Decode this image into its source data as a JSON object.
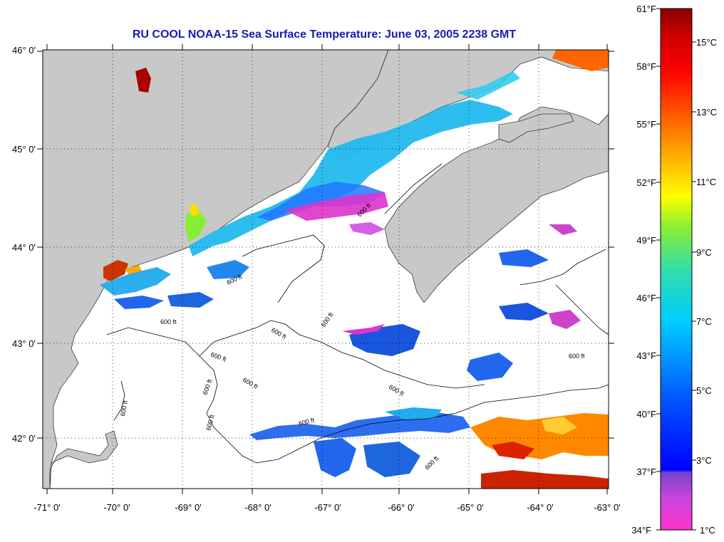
{
  "title": "RU COOL  NOAA-15  Sea Surface Temperature:  June 03, 2005 2238 GMT",
  "longitude_axis": {
    "ticks": [
      "-71° 0'",
      "-70° 0'",
      "-69° 0'",
      "-68° 0'",
      "-67° 0'",
      "-66° 0'",
      "-65° 0'",
      "-64° 0'",
      "-63° 0'"
    ],
    "range": [
      -71,
      -63
    ]
  },
  "latitude_axis": {
    "ticks": [
      "46° 0'",
      "45° 0'",
      "44° 0'",
      "43° 0'",
      "42° 0'"
    ],
    "values": [
      46,
      45,
      44,
      43,
      42
    ],
    "range": [
      41.5,
      46
    ]
  },
  "colorbar": {
    "fahrenheit": [
      {
        "label": "61°F",
        "value": 61
      },
      {
        "label": "58°F",
        "value": 58
      },
      {
        "label": "55°F",
        "value": 55
      },
      {
        "label": "52°F",
        "value": 52
      },
      {
        "label": "49°F",
        "value": 49
      },
      {
        "label": "46°F",
        "value": 46
      },
      {
        "label": "43°F",
        "value": 43
      },
      {
        "label": "40°F",
        "value": 40
      },
      {
        "label": "37°F",
        "value": 37
      },
      {
        "label": "34°F",
        "value": 34
      }
    ],
    "celsius": [
      {
        "label": "15°C",
        "value": 15
      },
      {
        "label": "13°C",
        "value": 13
      },
      {
        "label": "11°C",
        "value": 11
      },
      {
        "label": "9°C",
        "value": 9
      },
      {
        "label": "7°C",
        "value": 7
      },
      {
        "label": "5°C",
        "value": 5
      },
      {
        "label": "3°C",
        "value": 3
      },
      {
        "label": "1°C",
        "value": 1
      }
    ],
    "colors": [
      "#ff33cc",
      "#cc44dd",
      "#7744cc",
      "#0000ff",
      "#0066ff",
      "#00ccff",
      "#33ddaa",
      "#88ee33",
      "#ffff00",
      "#ffaa00",
      "#ff5500",
      "#ff0000",
      "#cc0000",
      "#880000"
    ]
  },
  "contour_labels": [
    "600 ft",
    "600 ft",
    "600 ft",
    "600 ft",
    "600 ft",
    "600 ft",
    "600 ft",
    "600 ft",
    "600 ft",
    "600 ft",
    "600 ft",
    "600 ft",
    "600 ft",
    "600 ft"
  ],
  "colors": {
    "land": "#c8c8c8",
    "ocean_nodata": "#ffffff",
    "title": "#1a1ab5"
  }
}
